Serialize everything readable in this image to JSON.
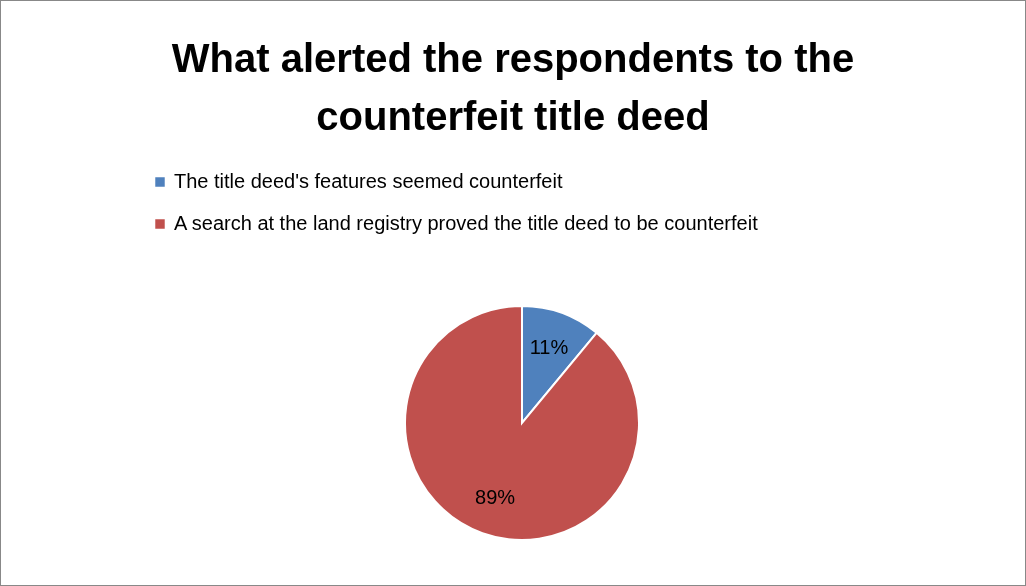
{
  "chart_data": {
    "type": "pie",
    "title": "What alerted the respondents to the counterfeit title deed",
    "categories": [
      "The title deed's features seemed counterfeit",
      "A search at the land registry proved the title deed to be counterfeit"
    ],
    "values": [
      11,
      89
    ],
    "colors": [
      "#4f81bd",
      "#c0504d"
    ],
    "value_labels": [
      "11%",
      "89%"
    ],
    "legend": "top"
  }
}
